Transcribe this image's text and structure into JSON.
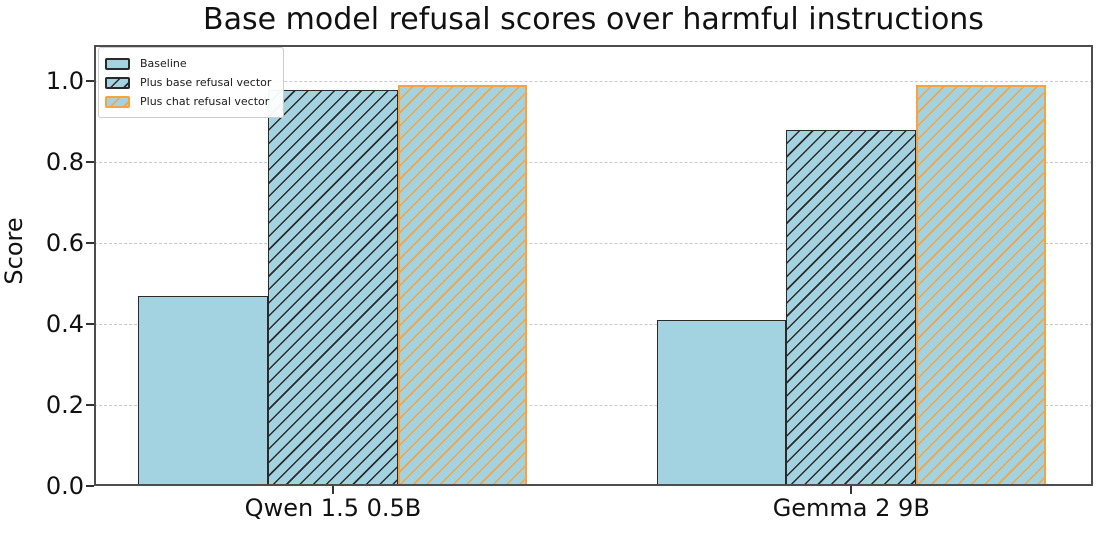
{
  "chart_data": {
    "type": "bar",
    "title": "Base model refusal scores over harmful instructions",
    "xlabel": "",
    "ylabel": "Score",
    "categories": [
      "Qwen 1.5 0.5B",
      "Gemma 2 9B"
    ],
    "series": [
      {
        "name": "Baseline",
        "values": [
          0.47,
          0.41
        ],
        "fill": "#a3d2e1",
        "edge": "#2a2a2a",
        "hatch": "none",
        "hatch_color": null
      },
      {
        "name": "Plus base refusal vector",
        "values": [
          0.98,
          0.88
        ],
        "fill": "#a3d2e1",
        "edge": "#2a2a2a",
        "hatch": "diagonal",
        "hatch_color": "#2a2a2a"
      },
      {
        "name": "Plus chat refusal vector",
        "values": [
          0.99,
          0.99
        ],
        "fill": "#a3d2e1",
        "edge": "#f8a33d",
        "hatch": "diagonal",
        "hatch_color": "#f8a33d"
      }
    ],
    "ylim": [
      0,
      1.09
    ],
    "ytick_labels": [
      "0.0",
      "0.2",
      "0.4",
      "0.6",
      "0.8",
      "1.0"
    ],
    "ytick_values": [
      0,
      0.2,
      0.4,
      0.6,
      0.8,
      1.0
    ],
    "grid": "horizontal-dashed",
    "legend_position": "upper-left"
  },
  "colors": {
    "bar_fill": "#a3d2e1",
    "dark_edge": "#2a2a2a",
    "orange_edge": "#f8a33d",
    "spine": "#4d4d4d",
    "gridline": "#c9c9c9",
    "text": "#111111"
  }
}
